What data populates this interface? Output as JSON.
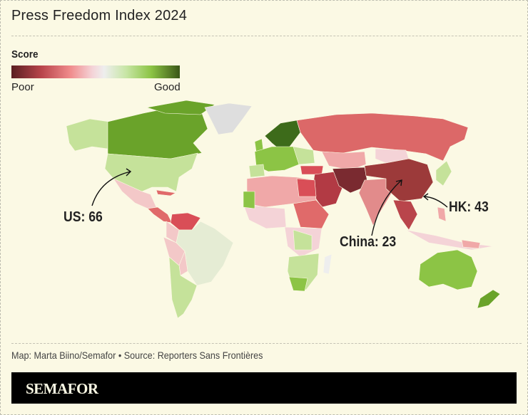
{
  "title": "Press Freedom Index 2024",
  "legend": {
    "title": "Score",
    "low_label": "Poor",
    "high_label": "Good",
    "colors": [
      "#5a1f22",
      "#b9454b",
      "#f08c8c",
      "#f4d3d7",
      "#eeeeee",
      "#c8e6a6",
      "#8cc445",
      "#3a5717"
    ]
  },
  "annotations": {
    "us": "US: 66",
    "china": "China: 23",
    "hk": "HK: 43"
  },
  "credit": "Map: Marta Biino/Semafor • Source: Reporters Sans Frontières",
  "footer": {
    "logo": "SEMAFOR"
  }
}
